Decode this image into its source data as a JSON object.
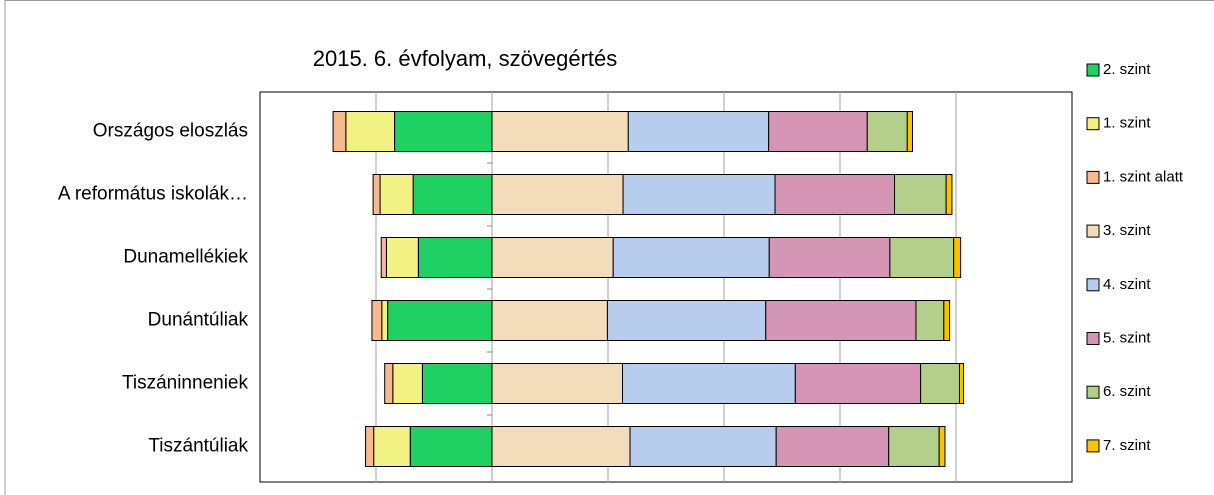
{
  "chart_data": {
    "type": "diverging-stacked-bar",
    "title": "2015. 6. évfolyam, szövegértés",
    "categories": [
      "Országos eloszlás",
      "A református iskolák…",
      "Dunamellékiek",
      "Dunántúliak",
      "Tiszáninneniek",
      "Tiszántúliak"
    ],
    "series": [
      {
        "name": "2. szint",
        "color": "#1fd062",
        "values": [
          -16.8,
          -13.6,
          -12.7,
          -18.0,
          -12.0,
          -14.1
        ]
      },
      {
        "name": "1. szint",
        "color": "#f2f184",
        "values": [
          -8.4,
          -5.7,
          -5.5,
          -1.0,
          -5.1,
          -6.3
        ]
      },
      {
        "name": "1. szint alatt",
        "color": "#f7b98e",
        "values": [
          -2.2,
          -1.2,
          -0.9,
          -1.7,
          -1.4,
          -1.4
        ]
      },
      {
        "name": "3. szint",
        "color": "#f2dcba",
        "values": [
          23.5,
          22.6,
          20.9,
          19.9,
          22.5,
          23.8
        ]
      },
      {
        "name": "4. szint",
        "color": "#b8cdee",
        "values": [
          24.2,
          26.2,
          26.9,
          27.3,
          29.8,
          25.2
        ]
      },
      {
        "name": "5. szint",
        "color": "#d496b4",
        "values": [
          17.0,
          20.6,
          20.8,
          25.9,
          21.6,
          19.4
        ]
      },
      {
        "name": "6. szint",
        "color": "#b3cf8a",
        "values": [
          6.9,
          8.9,
          11.0,
          4.8,
          6.7,
          8.7
        ]
      },
      {
        "name": "7. szint",
        "color": "#ffc000",
        "values": [
          0.9,
          1.0,
          1.2,
          1.0,
          0.7,
          1.0
        ]
      }
    ],
    "xlim": [
      -40,
      100
    ],
    "xticks": [
      -20,
      0,
      20,
      40,
      60,
      80
    ],
    "grid": true,
    "legend": "right"
  }
}
